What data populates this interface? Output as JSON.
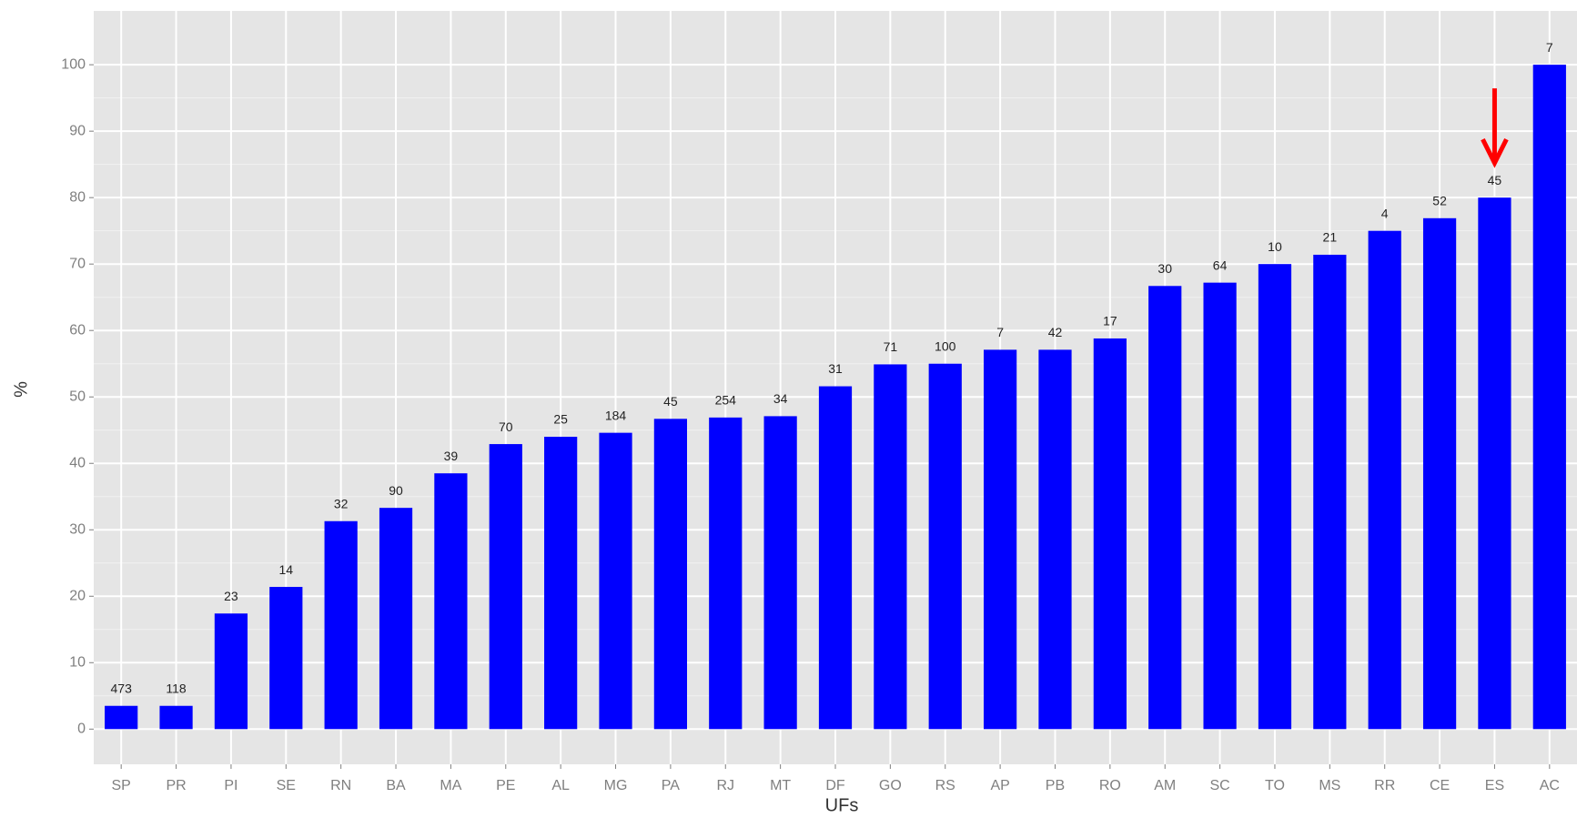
{
  "chart_data": {
    "type": "bar",
    "x_label": "UFs",
    "y_label": "%",
    "categories": [
      "SP",
      "PR",
      "PI",
      "SE",
      "RN",
      "BA",
      "MA",
      "PE",
      "AL",
      "MG",
      "PA",
      "RJ",
      "MT",
      "DF",
      "GO",
      "RS",
      "AP",
      "PB",
      "RO",
      "AM",
      "SC",
      "TO",
      "MS",
      "RR",
      "CE",
      "ES",
      "AC"
    ],
    "values": [
      3.5,
      3.5,
      17.4,
      21.4,
      31.3,
      33.3,
      38.5,
      42.9,
      44,
      44.6,
      46.7,
      46.9,
      47.1,
      51.6,
      54.9,
      55,
      57.1,
      57.1,
      58.8,
      66.7,
      67.2,
      70,
      71.4,
      75,
      76.9,
      80,
      100
    ],
    "bar_labels": [
      "473",
      "118",
      "23",
      "14",
      "32",
      "90",
      "39",
      "70",
      "25",
      "184",
      "45",
      "254",
      "34",
      "31",
      "71",
      "100",
      "7",
      "42",
      "17",
      "30",
      "64",
      "10",
      "21",
      "4",
      "52",
      "45",
      "7"
    ],
    "color": "#0000ff",
    "ylim": [
      -5.3,
      108.1
    ],
    "yticks": [
      0,
      10,
      20,
      30,
      40,
      50,
      60,
      70,
      80,
      90,
      100
    ],
    "grid": true,
    "highlight_category": "ES",
    "highlight_color": "#ff0000"
  }
}
